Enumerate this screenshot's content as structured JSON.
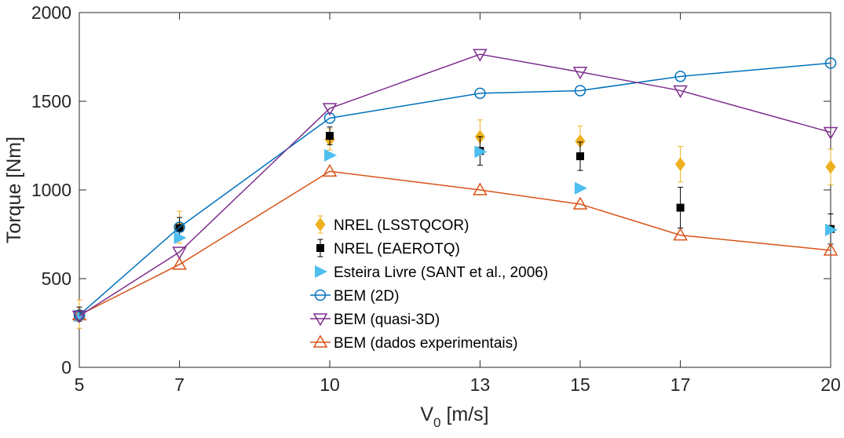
{
  "chart_data": {
    "type": "line",
    "title": "",
    "xlabel_main": "V",
    "xlabel_sub": "0",
    "xlabel_unit": " [m/s]",
    "ylabel": "Torque [Nm]",
    "x_ticks": [
      5,
      7,
      10,
      13,
      15,
      17,
      20
    ],
    "y_ticks": [
      0,
      500,
      1000,
      1500,
      2000
    ],
    "xlim": [
      5,
      20
    ],
    "ylim": [
      0,
      2000
    ],
    "grid": false,
    "legend_position": "center-bottom",
    "series": [
      {
        "name": "NREL (LSSTQCOR)",
        "marker": "diamond-filled",
        "color": "#EDB120",
        "errorbars": true,
        "x": [
          5,
          7,
          10,
          13,
          15,
          17,
          20
        ],
        "y": [
          300,
          790,
          1285,
          1300,
          1275,
          1145,
          1130
        ],
        "err": [
          80,
          90,
          60,
          95,
          85,
          100,
          100
        ]
      },
      {
        "name": "NREL (EAEROTQ)",
        "marker": "square-filled",
        "color": "#000000",
        "errorbars": true,
        "x": [
          5,
          7,
          10,
          13,
          15,
          17,
          20
        ],
        "y": [
          300,
          785,
          1305,
          1220,
          1190,
          900,
          780
        ],
        "err": [
          40,
          60,
          50,
          80,
          80,
          115,
          85
        ]
      },
      {
        "name": "Esteira Livre (SANT et al., 2006)",
        "marker": "triangle-right-filled",
        "color": "#4DBEEE",
        "x": [
          5,
          7,
          10,
          13,
          15,
          20
        ],
        "y": [
          290,
          730,
          1195,
          1215,
          1010,
          775
        ]
      },
      {
        "name": "BEM (2D)",
        "marker": "circle-open",
        "color": "#0072BD",
        "x": [
          5,
          7,
          10,
          13,
          15,
          17,
          20
        ],
        "y": [
          295,
          790,
          1405,
          1545,
          1560,
          1640,
          1715
        ]
      },
      {
        "name": "BEM (quasi-3D)",
        "marker": "triangle-down-open",
        "color": "#7E2F8E",
        "x": [
          5,
          7,
          10,
          13,
          15,
          17,
          20
        ],
        "y": [
          290,
          650,
          1460,
          1765,
          1665,
          1560,
          1325
        ]
      },
      {
        "name": "BEM (dados experimentais)",
        "marker": "triangle-up-open",
        "color": "#D95319",
        "x": [
          5,
          7,
          10,
          13,
          15,
          17,
          20
        ],
        "y": [
          295,
          580,
          1105,
          1000,
          920,
          745,
          660
        ]
      }
    ]
  }
}
